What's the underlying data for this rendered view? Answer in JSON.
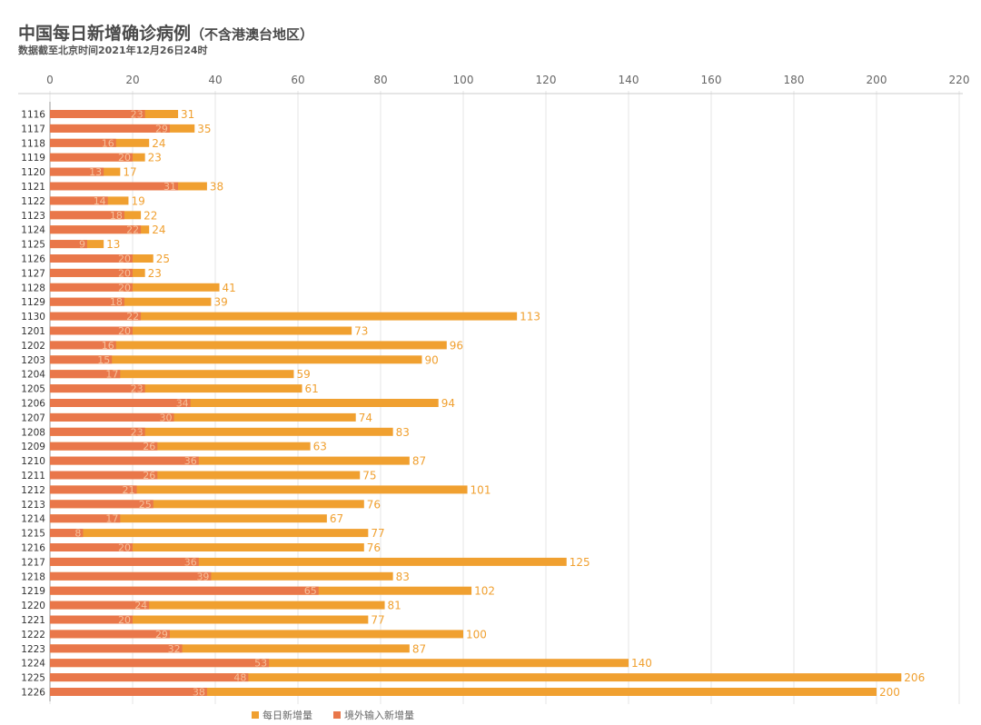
{
  "header": {
    "title": "中国每日新增确诊病例",
    "title_note": "（不含港澳台地区）",
    "subtitle": "数据截至北京时间2021年12月26日24时"
  },
  "chart_data": {
    "type": "bar",
    "orientation": "horizontal",
    "overlay": true,
    "xlim": [
      0,
      220
    ],
    "xticks": [
      0,
      20,
      40,
      60,
      80,
      100,
      120,
      140,
      160,
      180,
      200,
      220
    ],
    "grid": true,
    "legend_position": "bottom-center",
    "categories": [
      "1116",
      "1117",
      "1118",
      "1119",
      "1120",
      "1121",
      "1122",
      "1123",
      "1124",
      "1125",
      "1126",
      "1127",
      "1128",
      "1129",
      "1130",
      "1201",
      "1202",
      "1203",
      "1204",
      "1205",
      "1206",
      "1207",
      "1208",
      "1209",
      "1210",
      "1211",
      "1212",
      "1213",
      "1214",
      "1215",
      "1216",
      "1217",
      "1218",
      "1219",
      "1220",
      "1221",
      "1222",
      "1223",
      "1224",
      "1225",
      "1226"
    ],
    "series": [
      {
        "name": "每日新增量",
        "color": "#f0a030",
        "values": [
          31,
          35,
          24,
          23,
          17,
          38,
          19,
          22,
          24,
          13,
          25,
          23,
          41,
          39,
          113,
          73,
          96,
          90,
          59,
          61,
          94,
          74,
          83,
          63,
          87,
          75,
          101,
          76,
          67,
          77,
          76,
          125,
          83,
          102,
          81,
          77,
          100,
          87,
          140,
          206,
          200
        ]
      },
      {
        "name": "境外输入新增量",
        "color": "#e9774a",
        "values": [
          23,
          29,
          16,
          20,
          13,
          31,
          14,
          18,
          22,
          9,
          20,
          20,
          20,
          18,
          22,
          20,
          16,
          15,
          17,
          23,
          34,
          30,
          23,
          26,
          36,
          26,
          21,
          25,
          17,
          8,
          20,
          36,
          39,
          65,
          24,
          20,
          29,
          32,
          53,
          48,
          38
        ]
      }
    ]
  }
}
